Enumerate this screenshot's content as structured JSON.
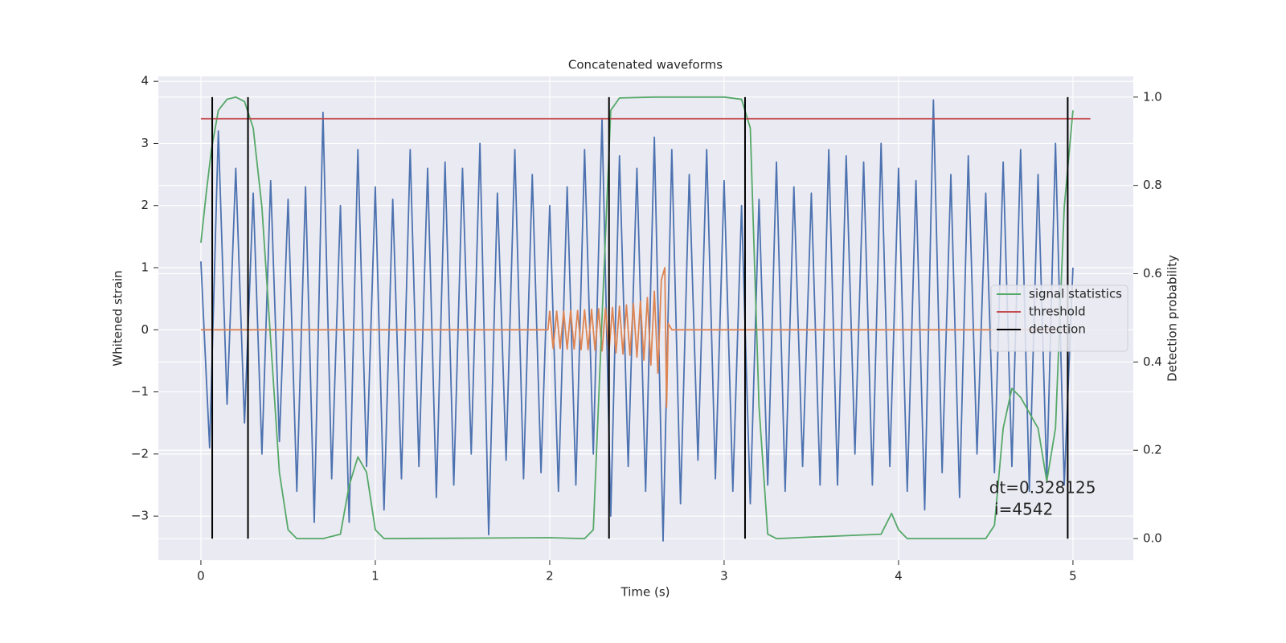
{
  "chart_data": {
    "type": "line",
    "title": "Concatenated waveforms",
    "xlabel": "Time (s)",
    "ylabel": "Whitened strain",
    "y2label": "Detection probability",
    "grid": true,
    "legend": "center right",
    "xlim": [
      -0.244,
      5.346
    ],
    "ylim": [
      -3.71,
      4.08
    ],
    "y2lim": [
      -0.049,
      1.047
    ],
    "xticks": [
      0,
      1,
      2,
      3,
      4,
      5
    ],
    "yticks": [
      {
        "value": -3,
        "label": "−3"
      },
      {
        "value": -2,
        "label": "−2"
      },
      {
        "value": -1,
        "label": "−1"
      },
      0,
      1,
      2,
      3,
      4
    ],
    "y2ticks": [
      {
        "value": 0,
        "label": "0.0"
      },
      0.2,
      0.4,
      0.6,
      0.8,
      {
        "value": 1,
        "label": "1.0"
      }
    ],
    "series": [
      {
        "color": "#4c72b0",
        "x": [
          0,
          0.05,
          0.1,
          0.15,
          0.2,
          0.25,
          0.3,
          0.35,
          0.4,
          0.45,
          0.5,
          0.55,
          0.6,
          0.65,
          0.7,
          0.75,
          0.8,
          0.85,
          0.9,
          0.95,
          1,
          1.05,
          1.1,
          1.15,
          1.2,
          1.25,
          1.3,
          1.35,
          1.4,
          1.45,
          1.5,
          1.55,
          1.6,
          1.65,
          1.7,
          1.75,
          1.8,
          1.85,
          1.9,
          1.95,
          2,
          2.05,
          2.1,
          2.15,
          2.2,
          2.25,
          2.3,
          2.35,
          2.4,
          2.45,
          2.5,
          2.55,
          2.6,
          2.65,
          2.7,
          2.75,
          2.8,
          2.85,
          2.9,
          2.95,
          3,
          3.05,
          3.1,
          3.15,
          3.2,
          3.25,
          3.3,
          3.35,
          3.4,
          3.45,
          3.5,
          3.55,
          3.6,
          3.65,
          3.7,
          3.75,
          3.8,
          3.85,
          3.9,
          3.95,
          4,
          4.05,
          4.1,
          4.15,
          4.2,
          4.25,
          4.3,
          4.35,
          4.4,
          4.45,
          4.5,
          4.55,
          4.6,
          4.65,
          4.7,
          4.75,
          4.8,
          4.85,
          4.9,
          4.95,
          5
        ],
        "values": [
          1.1,
          -1.9,
          3.2,
          -1.2,
          2.6,
          -1.5,
          2.2,
          -2.0,
          2.4,
          -1.8,
          2.1,
          -2.6,
          2.3,
          -3.1,
          3.5,
          -2.4,
          2.0,
          -3.1,
          2.9,
          -2.2,
          2.3,
          -2.9,
          2.1,
          -2.4,
          2.9,
          -2.2,
          2.6,
          -2.7,
          2.7,
          -2.5,
          2.6,
          -2.0,
          3.0,
          -3.3,
          2.2,
          -2.1,
          2.9,
          -2.4,
          2.5,
          -2.3,
          2.0,
          -2.6,
          2.3,
          -2.5,
          2.9,
          -2.0,
          3.4,
          -3.0,
          2.8,
          -2.2,
          2.6,
          -2.6,
          3.1,
          -3.4,
          2.9,
          -2.8,
          2.5,
          -2.1,
          2.9,
          -2.4,
          2.4,
          -2.6,
          2.0,
          -2.8,
          2.1,
          -2.5,
          2.7,
          -2.6,
          2.3,
          -2.2,
          2.2,
          -2.5,
          2.9,
          -2.5,
          2.8,
          -2.0,
          2.7,
          -2.5,
          3.0,
          -2.2,
          2.6,
          -2.6,
          2.4,
          -2.9,
          3.7,
          -2.3,
          2.5,
          -2.7,
          2.8,
          -2.0,
          2.2,
          -2.3,
          2.7,
          -2.2,
          2.9,
          -2.6,
          2.5,
          -2.4,
          3.0,
          -2.5,
          1.0
        ]
      },
      {
        "color": "#dd8452",
        "x": [
          0,
          1.99,
          2.0,
          2.02,
          2.04,
          2.06,
          2.08,
          2.1,
          2.12,
          2.14,
          2.16,
          2.18,
          2.2,
          2.22,
          2.24,
          2.26,
          2.28,
          2.3,
          2.32,
          2.34,
          2.36,
          2.38,
          2.4,
          2.42,
          2.44,
          2.46,
          2.48,
          2.5,
          2.52,
          2.54,
          2.56,
          2.58,
          2.6,
          2.62,
          2.64,
          2.66,
          2.67,
          2.68,
          2.7,
          5
        ],
        "values": [
          0,
          0,
          0.3,
          -0.3,
          0.3,
          -0.3,
          0.3,
          -0.31,
          0.31,
          -0.31,
          0.31,
          -0.32,
          0.32,
          -0.32,
          0.33,
          -0.33,
          0.34,
          -0.34,
          0.35,
          -0.35,
          0.36,
          -0.37,
          0.38,
          -0.39,
          0.4,
          -0.41,
          0.42,
          -0.44,
          0.46,
          -0.49,
          0.52,
          -0.57,
          0.62,
          -0.7,
          0.8,
          1.0,
          -1.25,
          0.1,
          0,
          0
        ]
      },
      {
        "name": "signal statistics",
        "color": "#55a868",
        "axis": "y2",
        "x": [
          0,
          0.03,
          0.06,
          0.1,
          0.15,
          0.2,
          0.25,
          0.3,
          0.35,
          0.4,
          0.45,
          0.5,
          0.55,
          0.7,
          0.8,
          0.85,
          0.9,
          0.95,
          1.0,
          1.05,
          2.0,
          2.2,
          2.25,
          2.3,
          2.35,
          2.4,
          2.6,
          3.0,
          3.1,
          3.15,
          3.2,
          3.25,
          3.3,
          3.9,
          3.96,
          4.0,
          4.05,
          4.5,
          4.55,
          4.6,
          4.65,
          4.7,
          4.8,
          4.85,
          4.9,
          4.95,
          5.0
        ],
        "values": [
          0.67,
          0.78,
          0.88,
          0.97,
          0.995,
          1.0,
          0.99,
          0.93,
          0.75,
          0.45,
          0.15,
          0.02,
          0.0,
          0.0,
          0.01,
          0.12,
          0.185,
          0.15,
          0.02,
          0.0,
          0.002,
          0.0,
          0.02,
          0.5,
          0.97,
          0.998,
          1.0,
          1.0,
          0.995,
          0.93,
          0.3,
          0.01,
          0.0,
          0.01,
          0.057,
          0.02,
          0.0,
          0.0,
          0.03,
          0.25,
          0.34,
          0.32,
          0.25,
          0.13,
          0.25,
          0.75,
          0.97
        ]
      },
      {
        "name": "threshold",
        "color": "#c44e52",
        "axis": "y2",
        "x": [
          0,
          5.1
        ],
        "values": [
          0.951,
          0.951
        ]
      }
    ],
    "detections": {
      "name": "detection",
      "color": "#000000",
      "x": [
        0.065,
        0.27,
        2.34,
        3.12,
        4.97
      ],
      "y2range": [
        0,
        1
      ]
    },
    "annotation": {
      "lines": [
        "dt=0.328125",
        " i=4542"
      ],
      "x": 4.52,
      "y": -2.55
    }
  }
}
